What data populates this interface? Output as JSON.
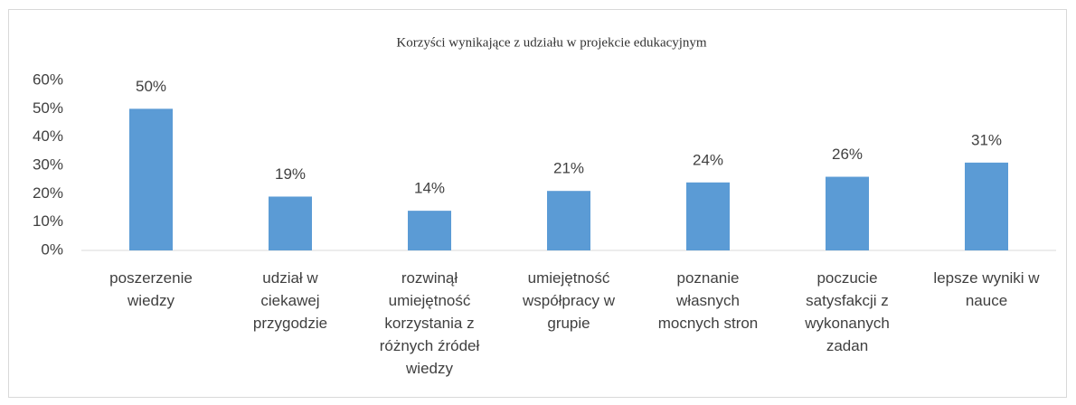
{
  "chart_data": {
    "type": "bar",
    "title": "Korzyści wynikające z udziału w projekcie edukacyjnym",
    "categories": [
      "poszerzenie wiedzy",
      "udział w ciekawej przygodzie",
      "rozwinął umiejętność korzystania z różnych źródeł wiedzy",
      "umiejętność współpracy w grupie",
      "poznanie własnych mocnych stron",
      "poczucie satysfakcji z wykonanych zadan",
      "lepsze wyniki w nauce"
    ],
    "values": [
      50,
      19,
      14,
      21,
      24,
      26,
      31
    ],
    "value_labels": [
      "50%",
      "19%",
      "14%",
      "21%",
      "24%",
      "26%",
      "31%"
    ],
    "color": "#5b9bd5",
    "ylim": [
      0,
      60
    ],
    "yticks": [
      {
        "value": 0,
        "label": "0%"
      },
      {
        "value": 10,
        "label": "10%"
      },
      {
        "value": 20,
        "label": "20%"
      },
      {
        "value": 30,
        "label": "30%"
      },
      {
        "value": 40,
        "label": "40%"
      },
      {
        "value": 50,
        "label": "50%"
      },
      {
        "value": 60,
        "label": "60%"
      }
    ],
    "grid": false
  }
}
